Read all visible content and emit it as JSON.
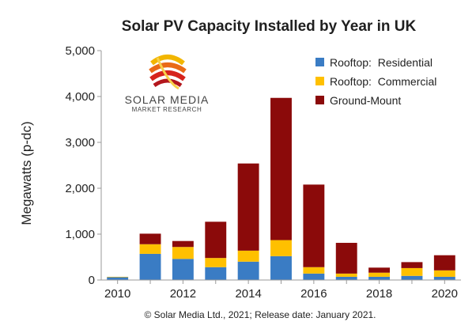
{
  "chart_data": {
    "type": "bar",
    "stacked": true,
    "title": "Solar PV Capacity Installed by Year in UK",
    "ylabel": "Megawatts (p-dc)",
    "xlabel": "",
    "ylim": [
      0,
      5000
    ],
    "yticks": [
      "0",
      "1,000",
      "2,000",
      "3,000",
      "4,000",
      "5,000"
    ],
    "ytick_values": [
      0,
      1000,
      2000,
      3000,
      4000,
      5000
    ],
    "categories": [
      2010,
      2011,
      2012,
      2013,
      2014,
      2015,
      2016,
      2017,
      2018,
      2019,
      2020
    ],
    "xtick_labels": [
      "2010",
      "2012",
      "2014",
      "2016",
      "2018",
      "2020"
    ],
    "series": [
      {
        "name": "Rooftop:  Residential",
        "color": "#3a7cc4",
        "values": [
          60,
          570,
          460,
          280,
          400,
          520,
          140,
          70,
          70,
          90,
          70
        ]
      },
      {
        "name": "Rooftop:  Commercial",
        "color": "#ffc000",
        "values": [
          10,
          210,
          260,
          200,
          240,
          350,
          140,
          70,
          90,
          170,
          140
        ]
      },
      {
        "name": "Ground-Mount",
        "color": "#8b0a0a",
        "values": [
          0,
          230,
          130,
          790,
          1900,
          3100,
          1800,
          670,
          110,
          130,
          330
        ]
      }
    ],
    "grid": false,
    "legend": "top-right"
  },
  "footnote": "© Solar Media Ltd., 2021; Release date: January 2021.",
  "logo": {
    "name": "SOLAR MEDIA",
    "tagline": "MARKET RESEARCH"
  }
}
